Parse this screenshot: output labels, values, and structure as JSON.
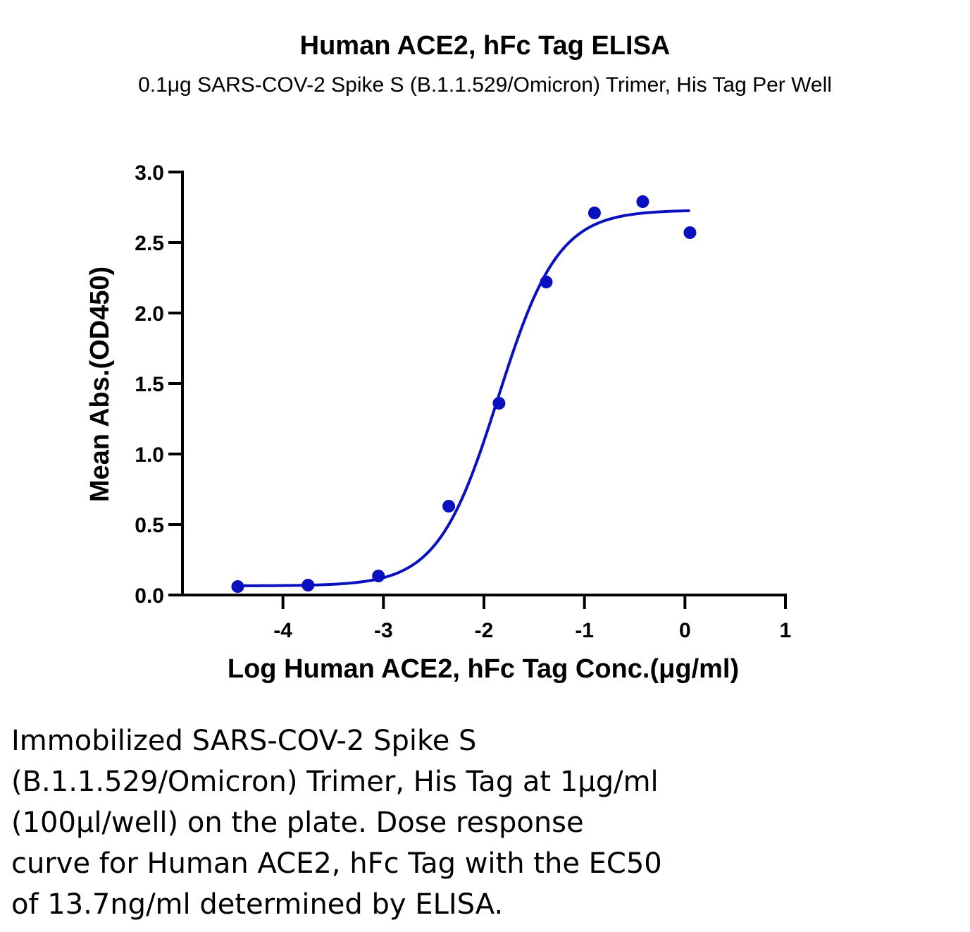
{
  "chart_data": {
    "type": "scatter",
    "title": "Human ACE2, hFc Tag ELISA",
    "subtitle": "0.1μg SARS-COV-2 Spike S (B.1.1.529/Omicron) Trimer, His Tag Per Well",
    "xlabel": "Log Human ACE2, hFc Tag Conc.(μg/ml)",
    "ylabel": "Mean Abs.(OD450)",
    "xlim": [
      -5,
      1
    ],
    "ylim": [
      0,
      3
    ],
    "xticks": [
      -4,
      -3,
      -2,
      -1,
      0,
      1
    ],
    "xtick_labels": [
      "-4",
      "-3",
      "-2",
      "-1",
      "0",
      "1"
    ],
    "yticks": [
      0,
      0.5,
      1,
      1.5,
      2,
      2.5,
      3
    ],
    "ytick_labels": [
      "0.0",
      "0.5",
      "1.0",
      "1.5",
      "2.0",
      "2.5",
      "3.0"
    ],
    "grid": false,
    "color": "#0a10c0",
    "points": [
      {
        "x": -4.45,
        "y": 0.06
      },
      {
        "x": -3.75,
        "y": 0.07
      },
      {
        "x": -3.05,
        "y": 0.135
      },
      {
        "x": -2.35,
        "y": 0.63
      },
      {
        "x": -1.85,
        "y": 1.36
      },
      {
        "x": -1.38,
        "y": 2.22
      },
      {
        "x": -0.9,
        "y": 2.71
      },
      {
        "x": -0.42,
        "y": 2.79
      },
      {
        "x": 0.05,
        "y": 2.57
      }
    ],
    "fit": {
      "model": "4PL",
      "bottom": 0.065,
      "top": 2.73,
      "logEC50": -1.86,
      "hill": 1.45,
      "x_start": -4.45,
      "x_end": 0.05
    }
  },
  "caption_lines": [
    "Immobilized SARS-COV-2 Spike S",
    "(B.1.1.529/Omicron) Trimer, His Tag at 1μg/ml",
    "(100μl/well) on the plate. Dose response",
    "curve for Human ACE2, hFc Tag with the EC50",
    "of 13.7ng/ml determined by ELISA."
  ]
}
